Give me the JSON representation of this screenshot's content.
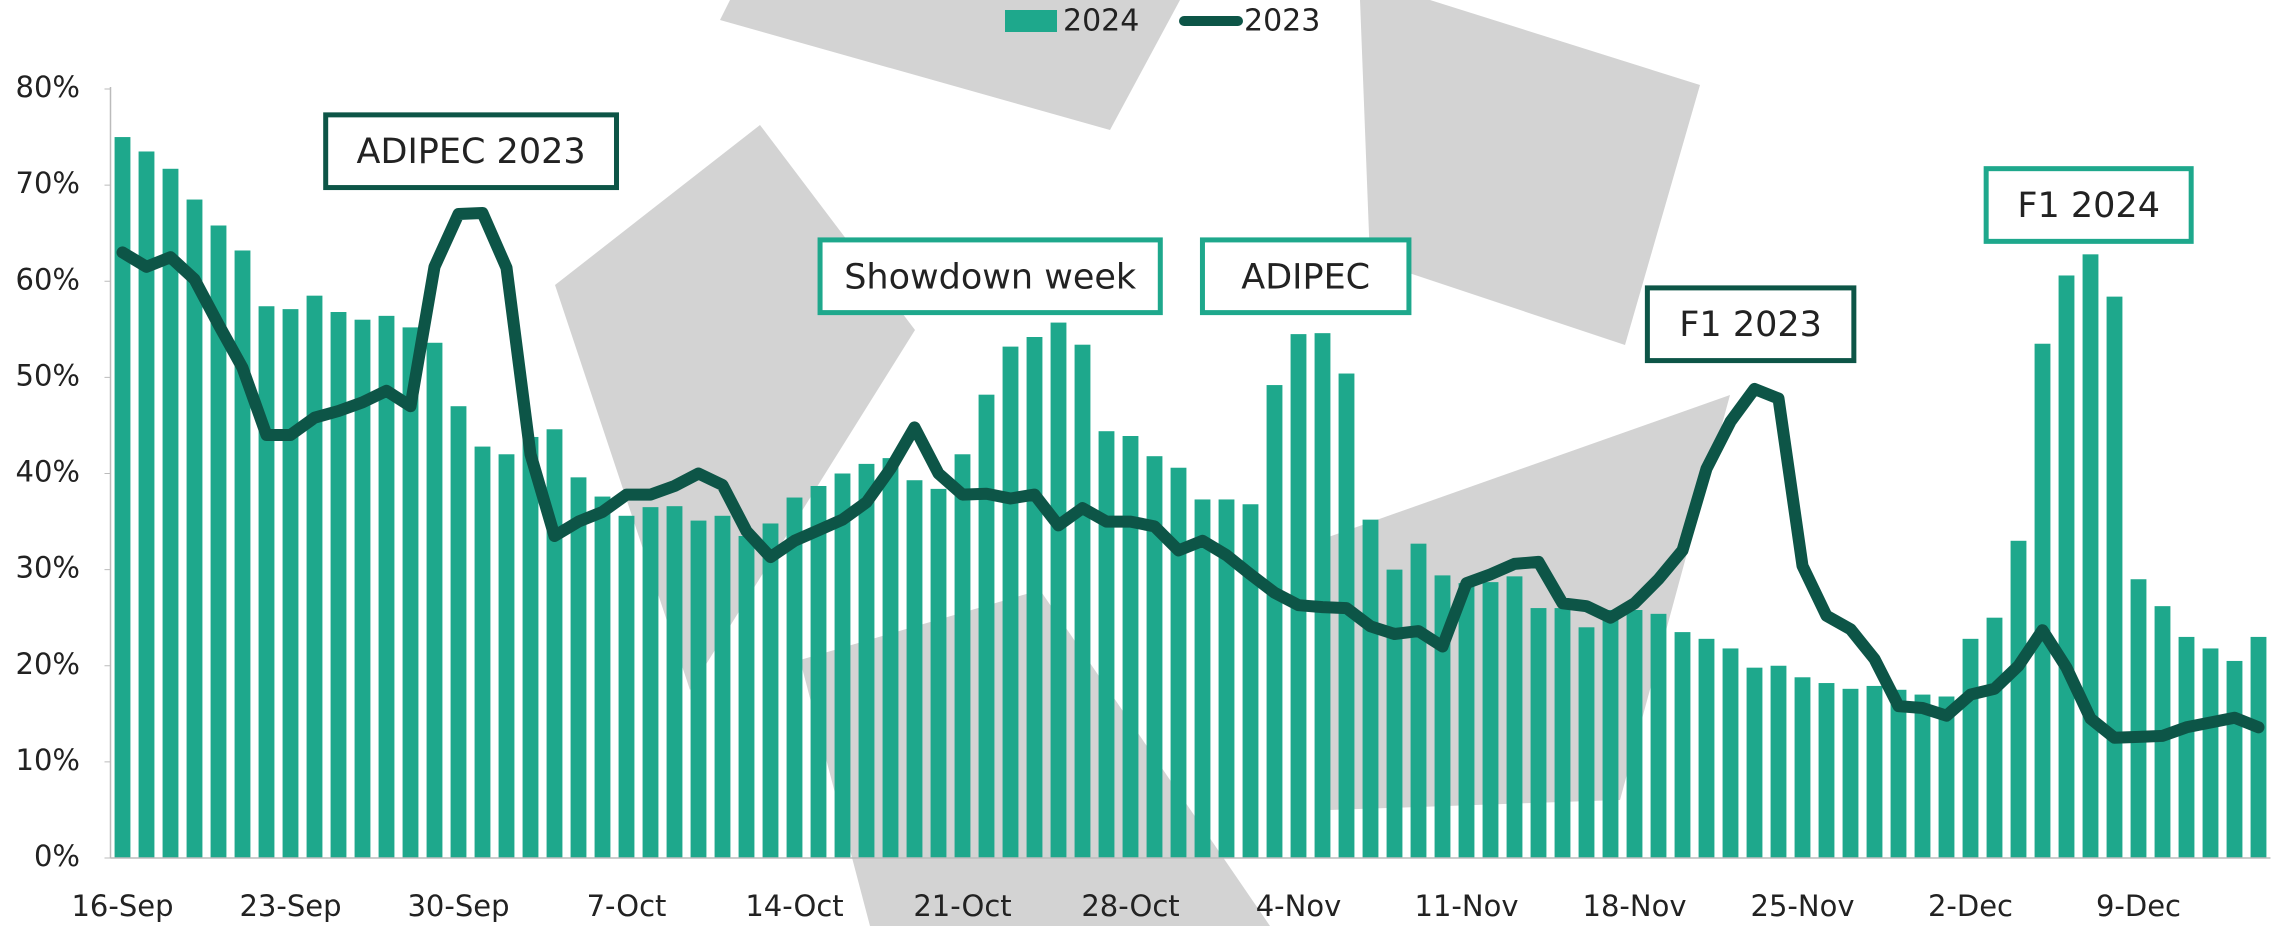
{
  "chart_data": {
    "type": "bar_line",
    "categories": [
      "16-Sep",
      null,
      null,
      null,
      null,
      null,
      null,
      "23-Sep",
      null,
      null,
      null,
      null,
      null,
      null,
      "30-Sep",
      null,
      null,
      null,
      null,
      null,
      null,
      "7-Oct",
      null,
      null,
      null,
      null,
      null,
      null,
      "14-Oct",
      null,
      null,
      null,
      null,
      null,
      null,
      "21-Oct",
      null,
      null,
      null,
      null,
      null,
      null,
      "28-Oct",
      null,
      null,
      null,
      null,
      null,
      null,
      "4-Nov",
      null,
      null,
      null,
      null,
      null,
      null,
      "11-Nov",
      null,
      null,
      null,
      null,
      null,
      null,
      "18-Nov",
      null,
      null,
      null,
      null,
      null,
      null,
      "25-Nov",
      null,
      null,
      null,
      null,
      null,
      null,
      "2-Dec",
      null,
      null,
      null,
      null,
      null,
      null,
      "9-Dec",
      null,
      null,
      null,
      null,
      null
    ],
    "series": [
      {
        "name": "2024",
        "type": "bar",
        "color": "#1ea88c",
        "values": [
          75,
          73.5,
          71.7,
          68.5,
          65.8,
          63.2,
          57.4,
          57.1,
          58.5,
          56.8,
          56,
          56.4,
          55.2,
          53.6,
          47,
          42.8,
          42,
          43.8,
          44.6,
          39.6,
          37.6,
          35.6,
          36.5,
          36.6,
          35.1,
          35.6,
          33.5,
          34.8,
          37.5,
          38.7,
          40,
          41,
          41.6,
          39.3,
          38.4,
          42,
          48.2,
          53.2,
          54.2,
          55.7,
          53.4,
          44.4,
          43.9,
          41.8,
          40.6,
          37.3,
          37.3,
          36.8,
          49.2,
          54.5,
          54.6,
          50.4,
          35.2,
          30,
          32.7,
          29.4,
          28.6,
          28.7,
          29.3,
          26,
          26,
          24,
          25.8,
          25.8,
          25.4,
          23.5,
          22.8,
          21.8,
          19.8,
          20,
          18.8,
          18.2,
          17.6,
          17.9,
          17.5,
          17,
          16.8,
          22.8,
          25,
          33,
          53.5,
          60.6,
          62.8,
          58.4,
          29,
          26.2,
          23,
          21.8,
          20.5,
          23
        ]
      },
      {
        "name": "2023",
        "type": "line",
        "color": "#0d5547",
        "values": [
          63,
          61.5,
          62.5,
          60.2,
          55.5,
          51,
          44,
          44,
          45.8,
          46.5,
          47.4,
          48.6,
          47,
          61.5,
          67,
          67.1,
          61.4,
          42,
          33.5,
          35,
          36,
          37.8,
          37.8,
          38.7,
          40,
          38.8,
          34,
          31.3,
          33,
          34.1,
          35.2,
          37,
          40.5,
          44.8,
          40,
          37.8,
          37.9,
          37.4,
          37.8,
          34.6,
          36.4,
          35,
          35,
          34.5,
          32,
          33,
          31.5,
          29.5,
          27.6,
          26.3,
          26.1,
          26,
          24.1,
          23.3,
          23.6,
          22,
          28.6,
          29.5,
          30.6,
          30.8,
          26.5,
          26.2,
          25,
          26.5,
          29,
          32,
          40.5,
          45.4,
          48.8,
          47.8,
          30.4,
          25.2,
          23.8,
          20.7,
          15.8,
          15.6,
          14.8,
          17,
          17.6,
          20,
          23.7,
          19.8,
          14.5,
          12.5,
          12.6,
          12.7,
          13.6,
          14.1,
          14.6,
          13.6
        ]
      }
    ],
    "ylim": [
      0,
      80
    ],
    "yticks": [
      {
        "value": 0,
        "label": "0%"
      },
      {
        "value": 10,
        "label": "10%"
      },
      {
        "value": 20,
        "label": "20%"
      },
      {
        "value": 30,
        "label": "30%"
      },
      {
        "value": 40,
        "label": "40%"
      },
      {
        "value": 50,
        "label": "50%"
      },
      {
        "value": 60,
        "label": "60%"
      },
      {
        "value": 70,
        "label": "70%"
      },
      {
        "value": 80,
        "label": "80%"
      }
    ],
    "legend": "top",
    "annotations": [
      {
        "text": "ADIPEC 2023",
        "color": "#0d5547"
      },
      {
        "text": "Showdown week",
        "color": "#1ea88c"
      },
      {
        "text": "ADIPEC",
        "color": "#1ea88c"
      },
      {
        "text": "F1 2023",
        "color": "#0d5547"
      },
      {
        "text": "F1 2024",
        "color": "#1ea88c"
      }
    ]
  }
}
